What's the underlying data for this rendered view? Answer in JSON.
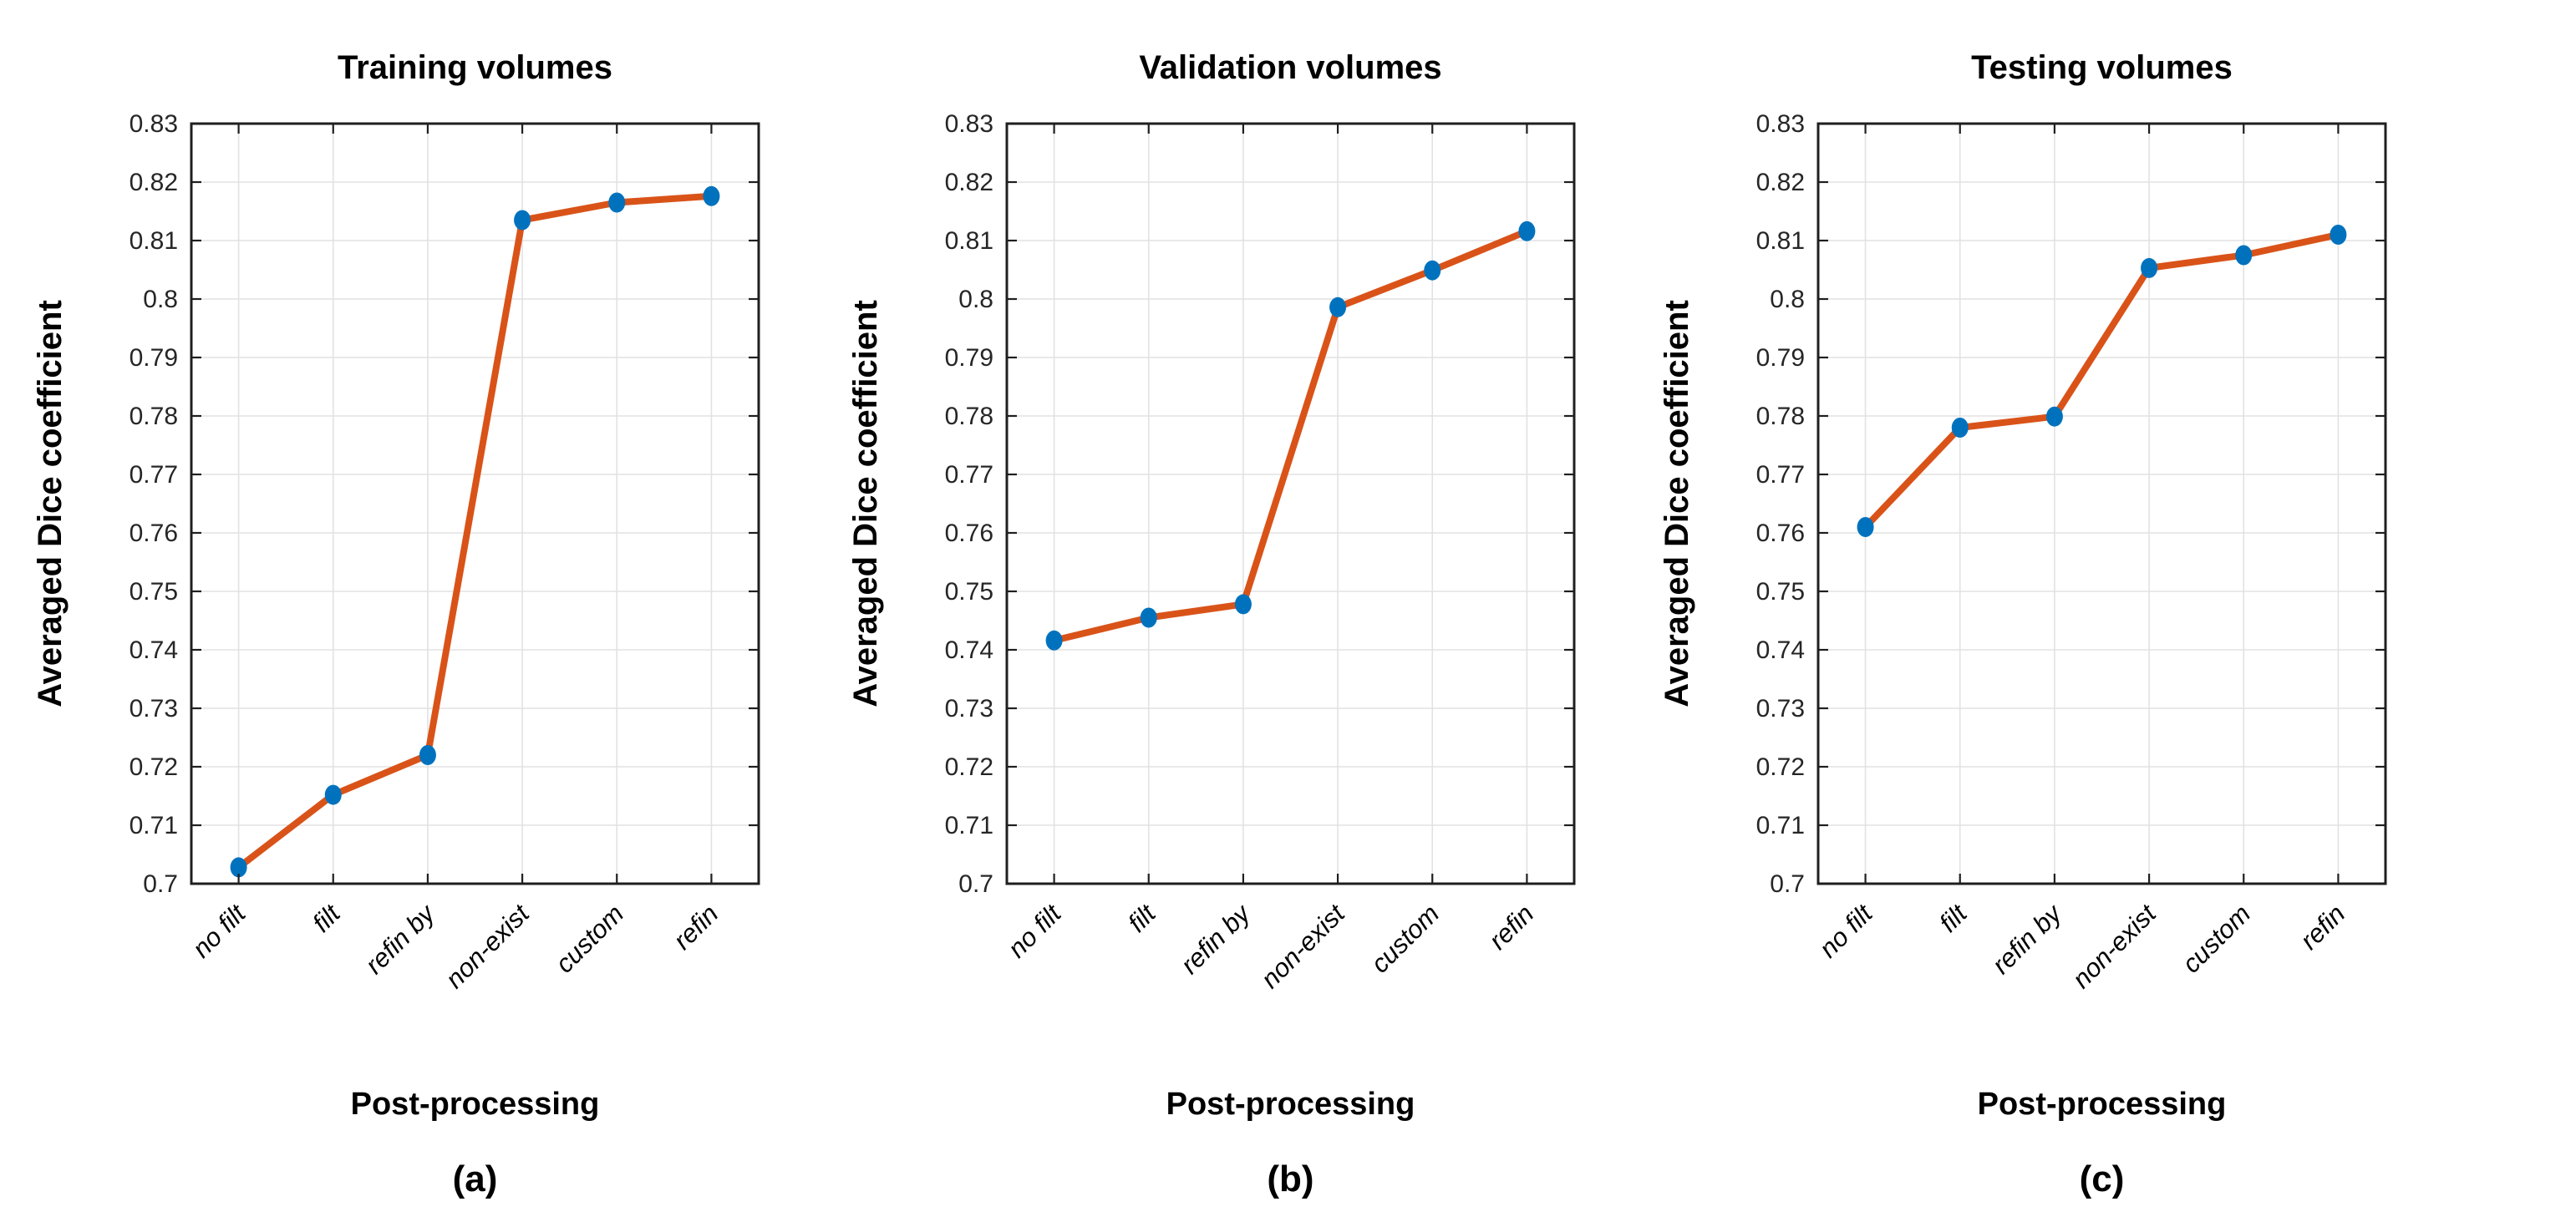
{
  "figure": {
    "background": "#ffffff",
    "shared": {
      "x_axis_label": "Post-processing",
      "y_axis_label": "Averaged Dice coefficient",
      "categories": [
        "no filt",
        "filt",
        "refin by",
        "non-exist",
        "custom",
        "refin"
      ],
      "y_tick_labels": [
        "0.7",
        "0.71",
        "0.72",
        "0.73",
        "0.74",
        "0.75",
        "0.76",
        "0.77",
        "0.78",
        "0.79",
        "0.8",
        "0.81",
        "0.82",
        "0.83"
      ]
    },
    "colors": {
      "line": "#D95319",
      "marker": "#0072BD",
      "grid": "#e2e2e2",
      "axis": "#1f1f1f",
      "tick_label": "#262626",
      "text": "#000000"
    }
  },
  "chart_data": [
    {
      "type": "line",
      "title": "Training volumes",
      "caption": "(a)",
      "xlabel": "Post-processing",
      "ylabel": "Averaged Dice coefficient",
      "categories": [
        "no filt",
        "filt",
        "refin by",
        "non-exist",
        "custom",
        "refin"
      ],
      "values": [
        0.7028,
        0.7152,
        0.722,
        0.8135,
        0.8165,
        0.8176
      ],
      "ylim": [
        0.7,
        0.83
      ],
      "y_tick_step": 0.01,
      "grid": true,
      "legend": "none",
      "marker": "circle"
    },
    {
      "type": "line",
      "title": "Validation volumes",
      "caption": "(b)",
      "xlabel": "Post-processing",
      "ylabel": "Averaged Dice coefficient",
      "categories": [
        "no filt",
        "filt",
        "refin by",
        "non-exist",
        "custom",
        "refin"
      ],
      "values": [
        0.7416,
        0.7455,
        0.7478,
        0.7986,
        0.8049,
        0.8116
      ],
      "ylim": [
        0.7,
        0.83
      ],
      "y_tick_step": 0.01,
      "grid": true,
      "legend": "none",
      "marker": "circle"
    },
    {
      "type": "line",
      "title": "Testing volumes",
      "caption": "(c)",
      "xlabel": "Post-processing",
      "ylabel": "Averaged Dice coefficient",
      "categories": [
        "no filt",
        "filt",
        "refin by",
        "non-exist",
        "custom",
        "refin"
      ],
      "values": [
        0.761,
        0.778,
        0.7799,
        0.8053,
        0.8075,
        0.811
      ],
      "ylim": [
        0.7,
        0.83
      ],
      "y_tick_step": 0.01,
      "grid": true,
      "legend": "none",
      "marker": "circle"
    }
  ]
}
